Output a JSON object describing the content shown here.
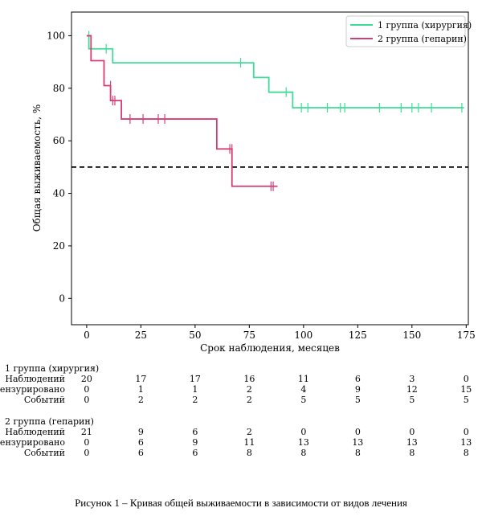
{
  "chart_data": {
    "type": "line",
    "subtype": "kaplan-meier",
    "xlabel": "Срок наблюдения, месяцев",
    "ylabel": "Общая выживаемость, %",
    "xlim": [
      -7,
      176
    ],
    "ylim": [
      -10,
      109
    ],
    "xticks": [
      0,
      25,
      50,
      75,
      100,
      125,
      150,
      175
    ],
    "yticks": [
      0,
      20,
      40,
      60,
      80,
      100
    ],
    "reference_line": {
      "y": 50,
      "style": "dashed",
      "color": "#000000"
    },
    "legend_position": "top-right",
    "series": [
      {
        "name": "1 группа (хирургия)",
        "color": "#3ddc97",
        "steps": [
          [
            0,
            100
          ],
          [
            1,
            95
          ],
          [
            12,
            89.7
          ],
          [
            77,
            84.1
          ],
          [
            84,
            78.5
          ],
          [
            95,
            72.6
          ],
          [
            174,
            72.6
          ]
        ],
        "censored": [
          [
            1,
            100
          ],
          [
            9,
            95
          ],
          [
            71,
            89.7
          ],
          [
            92,
            78.5
          ],
          [
            99,
            72.6
          ],
          [
            102,
            72.6
          ],
          [
            111,
            72.6
          ],
          [
            117,
            72.6
          ],
          [
            119,
            72.6
          ],
          [
            135,
            72.6
          ],
          [
            145,
            72.6
          ],
          [
            150,
            72.6
          ],
          [
            153,
            72.6
          ],
          [
            159,
            72.6
          ],
          [
            173,
            72.6
          ]
        ]
      },
      {
        "name": "2 группа (гепарин)",
        "color": "#d63d75",
        "steps": [
          [
            0,
            100
          ],
          [
            2,
            90.5
          ],
          [
            8,
            81
          ],
          [
            11,
            75.3
          ],
          [
            16,
            68.3
          ],
          [
            60,
            56.9
          ],
          [
            67,
            42.7
          ],
          [
            88,
            42.7
          ]
        ],
        "censored": [
          [
            11,
            81
          ],
          [
            12,
            75.3
          ],
          [
            13,
            75.3
          ],
          [
            20,
            68.3
          ],
          [
            26,
            68.3
          ],
          [
            33,
            68.3
          ],
          [
            36,
            68.3
          ],
          [
            66,
            56.9
          ],
          [
            67,
            56.9
          ],
          [
            85,
            42.7
          ],
          [
            86,
            42.7
          ]
        ]
      }
    ]
  },
  "risk_table": {
    "groups": [
      {
        "title": "1 группа (хирургия)",
        "rows": [
          {
            "label": "Наблюдений",
            "values": [
              "20",
              "17",
              "17",
              "16",
              "11",
              "6",
              "3",
              "0"
            ]
          },
          {
            "label": "Цензурировано",
            "values": [
              "0",
              "1",
              "1",
              "2",
              "4",
              "9",
              "12",
              "15"
            ]
          },
          {
            "label": "Событий",
            "values": [
              "0",
              "2",
              "2",
              "2",
              "5",
              "5",
              "5",
              "5"
            ]
          }
        ]
      },
      {
        "title": "2 группа (гепарин)",
        "rows": [
          {
            "label": "Наблюдений",
            "values": [
              "21",
              "9",
              "6",
              "2",
              "0",
              "0",
              "0",
              "0"
            ]
          },
          {
            "label": "Цензурировано",
            "values": [
              "0",
              "6",
              "9",
              "11",
              "13",
              "13",
              "13",
              "13"
            ]
          },
          {
            "label": "Событий",
            "values": [
              "0",
              "6",
              "6",
              "8",
              "8",
              "8",
              "8",
              "8"
            ]
          }
        ]
      }
    ]
  },
  "caption": "Рисунок 1 – Кривая общей выживаемости в зависимости от видов лечения"
}
